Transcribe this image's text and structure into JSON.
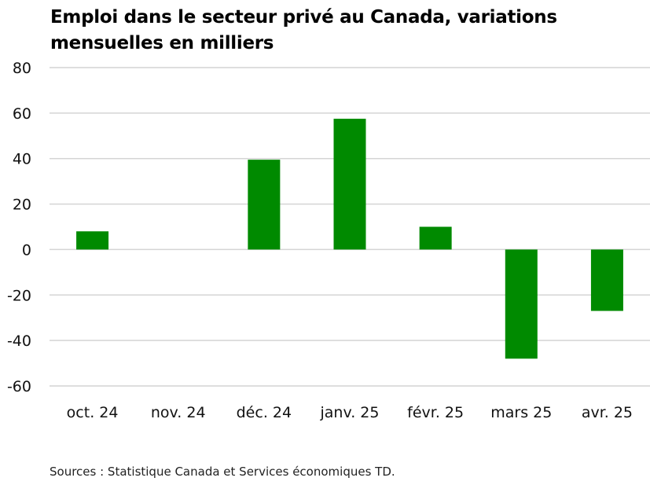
{
  "chart_data": {
    "type": "bar",
    "title_lines": [
      "Emploi dans le secteur privé au Canada, variations",
      "mensuelles en milliers"
    ],
    "categories": [
      "oct. 24",
      "nov. 24",
      "déc. 24",
      "janv. 25",
      "févr. 25",
      "mars 25",
      "avr. 25"
    ],
    "values": [
      8,
      0,
      39.5,
      57.5,
      10,
      -48,
      -27
    ],
    "yticks": [
      80,
      60,
      40,
      20,
      0,
      -20,
      -40,
      -60
    ],
    "ylim": [
      -60,
      80
    ],
    "xlabel": "",
    "ylabel": "",
    "grid": true,
    "bar_color": "#008a00",
    "grid_color": "#d4d4d4"
  },
  "source": "Sources : Statistique Canada et Services économiques TD."
}
